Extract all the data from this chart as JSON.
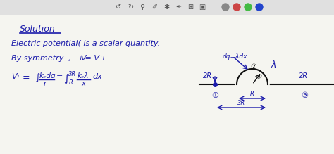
{
  "bg_color": "#f5f5f0",
  "text_color": "#1a1aaa",
  "dark_color": "#111111",
  "toolbar_bg": "#e0e0e0",
  "circle_colors": [
    "#888888",
    "#cc4444",
    "#44bb44",
    "#2244cc"
  ],
  "solution_text": "Solution",
  "line1": "Electric potential( is a scalar quantity.",
  "line2a": "By symmetry  ,    V",
  "line2b": " = V",
  "subscript1": "1",
  "subscript3": "3",
  "integral_sym": "∫",
  "lambda_sym": "λ",
  "circled1": "①",
  "circled2": "②",
  "circled3": "③",
  "ke": "kₑ",
  "dq_label": "dq=λdx",
  "lambda_label": "λ"
}
